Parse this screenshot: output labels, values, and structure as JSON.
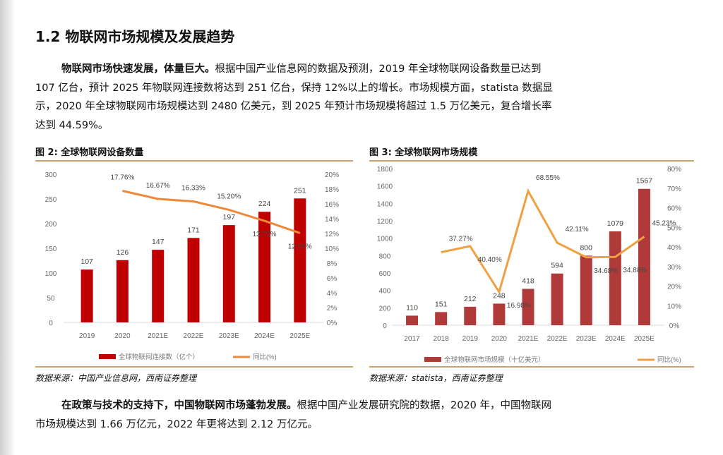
{
  "heading": "1.2 物联网市场规模及发展趋势",
  "para1": {
    "bold": "物联网市场快速发展，体量巨大。",
    "text": "根据中国产业信息网的数据及预测，2019 年全球物联网设备数量已达到 107 亿台，预计 2025 年物联网连接数将达到 251 亿台，保持 12%以上的增长。市场规模方面，statista 数据显示，2020 年全球物联网市场规模达到 2480 亿美元，到 2025 年预计市场规模将超过 1.5 万亿美元，复合增长率达到 44.59%。"
  },
  "para2": {
    "bold": "在政策与技术的支持下，中国物联网市场蓬勃发展。",
    "text": "根据中国产业发展研究院的数据，2020 年，中国物联网市场规模达到 1.66 万亿元，2022 年更将达到 2.12 万亿元。"
  },
  "chart_data": [
    {
      "type": "bar",
      "title": "图 2:  全球物联网设备数量",
      "source": "数据来源：中国产业信息网，西南证券整理",
      "categories": [
        "2019",
        "2020",
        "2021E",
        "2022E",
        "2023E",
        "2024E",
        "2025E"
      ],
      "series": [
        {
          "name": "全球物联网连接数（亿个）",
          "type": "bar",
          "values": [
            107,
            126,
            147,
            171,
            197,
            224,
            251
          ],
          "color": "#c00000"
        },
        {
          "name": "同比(%)",
          "type": "line",
          "values": [
            null,
            17.76,
            16.67,
            16.33,
            15.2,
            13.71,
            12.05
          ],
          "labels": [
            "",
            "17.76%",
            "16.67%",
            "16.33%",
            "15.20%",
            "13.71%",
            "12.05%"
          ],
          "color": "#ed8a3a"
        }
      ],
      "ylim": [
        0,
        300
      ],
      "yticks": [
        0,
        50,
        100,
        150,
        200,
        250,
        300
      ],
      "y2lim": [
        0,
        20
      ],
      "y2ticks": [
        "0%",
        "2%",
        "4%",
        "6%",
        "8%",
        "10%",
        "12%",
        "14%",
        "16%",
        "18%",
        "20%"
      ]
    },
    {
      "type": "bar",
      "title": "图 3:  全球物联网市场规模",
      "source": "数据来源：statista，西南证券整理",
      "categories": [
        "2017",
        "2018",
        "2019",
        "2020",
        "2021E",
        "2022E",
        "2023E",
        "2024E",
        "2025E"
      ],
      "series": [
        {
          "name": "全球物联网市场规模（十亿美元）",
          "type": "bar",
          "values": [
            110,
            151,
            212,
            248,
            418,
            594,
            800,
            1079,
            1567
          ],
          "color": "#b03a3a"
        },
        {
          "name": "同比(%)",
          "type": "line",
          "values": [
            null,
            37.27,
            40.4,
            16.98,
            68.55,
            42.11,
            34.68,
            34.88,
            45.23
          ],
          "labels": [
            "",
            "37.27%",
            "40.40%",
            "16.98%",
            "68.55%",
            "42.11%",
            "34.68%",
            "34.88%",
            "45.23%"
          ],
          "color": "#f0a040"
        }
      ],
      "ylim": [
        0,
        1800
      ],
      "yticks": [
        0,
        200,
        400,
        600,
        800,
        1000,
        1200,
        1400,
        1600,
        1800
      ],
      "y2lim": [
        0,
        80
      ],
      "y2ticks": [
        "0%",
        "10%",
        "20%",
        "30%",
        "40%",
        "50%",
        "60%",
        "70%",
        "80%"
      ]
    }
  ]
}
